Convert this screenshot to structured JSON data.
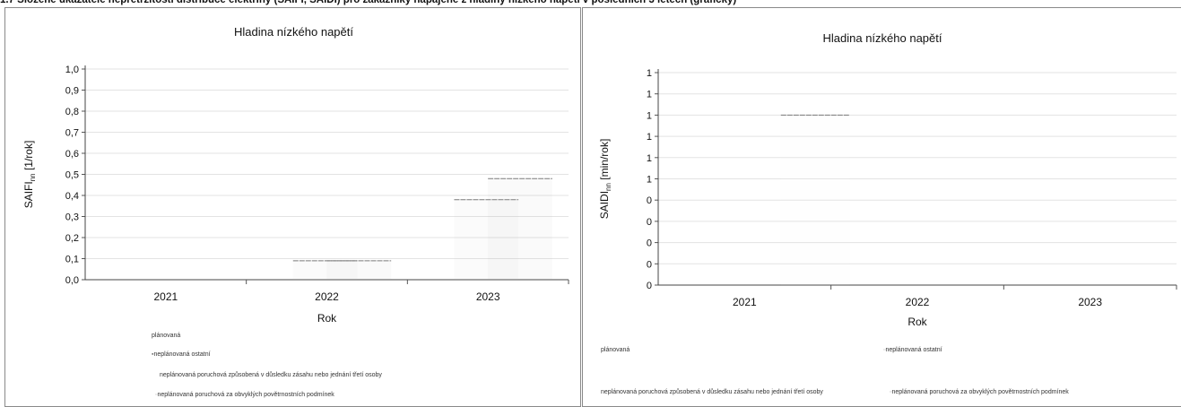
{
  "page": {
    "caption": "1.7 Složené ukazatele nepřetržitosti distribuce elektřiny (SAIFI, SAIDI) pro zákazníky napájené z hladiny nízkého napětí v posledních 3 letech (graficky)"
  },
  "chart_data": [
    {
      "type": "bar",
      "title": "Hladina nízkého napětí",
      "xlabel": "Rok",
      "ylabel": "SAIFI",
      "ylabel_sub": "nn",
      "ylabel_unit": " [1/rok]",
      "categories": [
        "2021",
        "2022",
        "2023"
      ],
      "ylim": [
        0,
        1.0
      ],
      "yticks": [
        "0,0",
        "0,1",
        "0,2",
        "0,3",
        "0,4",
        "0,5",
        "0,6",
        "0,7",
        "0,8",
        "0,9",
        "1,0"
      ],
      "series": [
        {
          "name": "plánovaná",
          "values": [
            0,
            0,
            0
          ],
          "color": "#d9d9d9"
        },
        {
          "name": "neplánovaná ostatní",
          "values": [
            0,
            0.09,
            0.38
          ],
          "color": "#bfbfbf"
        },
        {
          "name": "neplánovaná poruchová způsobená v důsledku zásahu nebo jednání třetí osoby",
          "values": [
            0,
            0.09,
            0.48
          ],
          "color": "#a6a6a6"
        },
        {
          "name": "neplánovaná poruchová za obvyklých povětrnostních podmínek",
          "values": [
            0,
            0,
            0
          ],
          "color": "#e6e6e6"
        }
      ],
      "legend_position": "bottom",
      "grid": true
    },
    {
      "type": "bar",
      "title": "Hladina nízkého napětí",
      "xlabel": "Rok",
      "ylabel": "SAIDI",
      "ylabel_sub": "nn",
      "ylabel_unit": " [min/rok]",
      "categories": [
        "2021",
        "2022",
        "2023"
      ],
      "ylim": [
        0,
        1.0
      ],
      "yticks": [
        "0",
        "0",
        "0",
        "0",
        "0",
        "1",
        "1",
        "1",
        "1",
        "1",
        "1"
      ],
      "series": [
        {
          "name": "plánovaná",
          "values": [
            0,
            0,
            0
          ],
          "color": "#d9d9d9"
        },
        {
          "name": "neplánovaná ostatní",
          "values": [
            0,
            0,
            0
          ],
          "color": "#bfbfbf"
        },
        {
          "name": "neplánovaná poruchová způsobená v důsledku zásahu nebo jednání třetí osoby",
          "values": [
            0,
            0,
            0
          ],
          "color": "#a6a6a6"
        },
        {
          "name": "neplánovaná poruchová za obvyklých povětrnostních podmínek",
          "values": [
            0.8,
            0,
            0
          ],
          "color": "#e6e6e6"
        }
      ],
      "legend_position": "bottom",
      "grid": true
    }
  ]
}
